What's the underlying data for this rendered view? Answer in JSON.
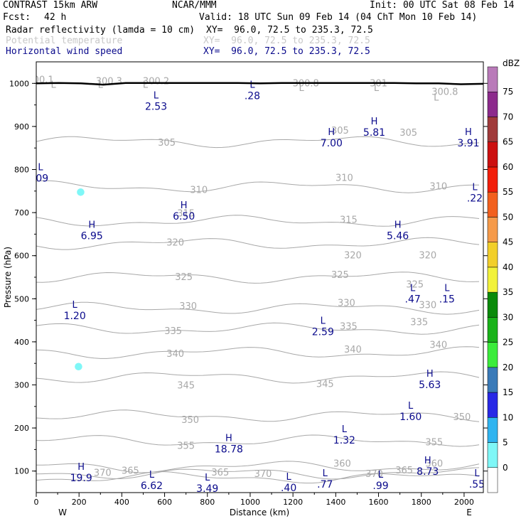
{
  "header": {
    "model": "CONTRAST 15km ARW",
    "org": "NCAR/MMM",
    "init": "Init: 00 UTC Sat 08 Feb 14",
    "fcst_label": "Fcst:",
    "fcst_value": "42 h",
    "valid": "Valid: 18 UTC Sun 09 Feb 14 (04 ChT Mon 10 Feb 14)",
    "field1_name": "Radar reflectivity (lamda = 10 cm)",
    "field1_xy": "XY=  96.0, 72.5 to 235.3, 72.5",
    "field2_name": "Potential temperature",
    "field2_xy": "XY=  96.0, 72.5 to 235.3, 72.5",
    "field3_name": "Horizontal wind speed",
    "field3_xy": "XY=  96.0, 72.5 to 235.3, 72.5"
  },
  "colors": {
    "theta_contour": "#a8a8a8",
    "wind_label": "#0a0a8c",
    "reflectivity_5_10": "#7ff7f7",
    "terrain": "#000000"
  },
  "chart_data": {
    "type": "cross-section",
    "xlabel": "Distance (km)",
    "ylabel": "Pressure (hPa)",
    "xlim": [
      0,
      2090
    ],
    "ylim": [
      1050,
      50
    ],
    "x_ticks": [
      "0",
      "200",
      "400",
      "600",
      "800",
      "1000",
      "1200",
      "1400",
      "1600",
      "1800",
      "2000"
    ],
    "y_ticks": [
      "100",
      "200",
      "300",
      "400",
      "500",
      "600",
      "700",
      "800",
      "900",
      "1000"
    ],
    "x_end_labels": {
      "left": "W",
      "right": "E"
    },
    "colorbar": {
      "unit": "dBZ",
      "labels": [
        "0",
        "5",
        "10",
        "15",
        "20",
        "25",
        "30",
        "35",
        "40",
        "45",
        "50",
        "55",
        "60",
        "65",
        "70",
        "75"
      ],
      "colors": [
        "#ffffff",
        "#7ff7f7",
        "#30b4f0",
        "#2828e6",
        "#3a7ab8",
        "#3bec3b",
        "#19b219",
        "#0a8a0a",
        "#f2f23a",
        "#f2cf2a",
        "#f59a4a",
        "#f2601e",
        "#f21e0a",
        "#cc1010",
        "#a03a3a",
        "#8c2a8c",
        "#b97ab9"
      ]
    },
    "theta_contours": [
      {
        "value": "305",
        "p": 865
      },
      {
        "value": "310",
        "p": 760
      },
      {
        "value": "315",
        "p": 680
      },
      {
        "value": "320",
        "p": 628
      },
      {
        "value": "325",
        "p": 550
      },
      {
        "value": "330",
        "p": 478
      },
      {
        "value": "335",
        "p": 430
      },
      {
        "value": "340",
        "p": 375
      },
      {
        "value": "345",
        "p": 318
      },
      {
        "value": "350",
        "p": 228
      },
      {
        "value": "355",
        "p": 170
      },
      {
        "value": "360",
        "p": 110
      },
      {
        "value": "365",
        "p": 95
      },
      {
        "value": "370",
        "p": 85
      }
    ],
    "theta_labels": [
      {
        "text": "370",
        "x": 310,
        "p": 95
      },
      {
        "text": "365",
        "x": 440,
        "p": 100
      },
      {
        "text": "365",
        "x": 860,
        "p": 96
      },
      {
        "text": "370",
        "x": 1060,
        "p": 93
      },
      {
        "text": "370",
        "x": 1580,
        "p": 93
      },
      {
        "text": "365",
        "x": 1720,
        "p": 101
      },
      {
        "text": "360",
        "x": 1430,
        "p": 117
      },
      {
        "text": "360",
        "x": 1860,
        "p": 117
      },
      {
        "text": "355",
        "x": 700,
        "p": 158
      },
      {
        "text": "355",
        "x": 1860,
        "p": 166
      },
      {
        "text": "350",
        "x": 720,
        "p": 218
      },
      {
        "text": "350",
        "x": 1990,
        "p": 225
      },
      {
        "text": "345",
        "x": 700,
        "p": 298
      },
      {
        "text": "345",
        "x": 1350,
        "p": 302
      },
      {
        "text": "340",
        "x": 650,
        "p": 372
      },
      {
        "text": "340",
        "x": 1480,
        "p": 382
      },
      {
        "text": "340",
        "x": 1880,
        "p": 392
      },
      {
        "text": "335",
        "x": 640,
        "p": 425
      },
      {
        "text": "335",
        "x": 1460,
        "p": 435
      },
      {
        "text": "335",
        "x": 1790,
        "p": 445
      },
      {
        "text": "330",
        "x": 710,
        "p": 482
      },
      {
        "text": "330",
        "x": 1450,
        "p": 490
      },
      {
        "text": "330",
        "x": 1830,
        "p": 485
      },
      {
        "text": "325",
        "x": 690,
        "p": 550
      },
      {
        "text": "325",
        "x": 1420,
        "p": 555
      },
      {
        "text": "325",
        "x": 1770,
        "p": 533
      },
      {
        "text": "320",
        "x": 650,
        "p": 630
      },
      {
        "text": "320",
        "x": 1480,
        "p": 600
      },
      {
        "text": "320",
        "x": 1830,
        "p": 600
      },
      {
        "text": "315",
        "x": 700,
        "p": 698
      },
      {
        "text": "315",
        "x": 1460,
        "p": 683
      },
      {
        "text": "310",
        "x": 760,
        "p": 752
      },
      {
        "text": "310",
        "x": 1440,
        "p": 780
      },
      {
        "text": "310",
        "x": 1880,
        "p": 760
      },
      {
        "text": "305",
        "x": 610,
        "p": 862
      },
      {
        "text": "305",
        "x": 1420,
        "p": 890
      },
      {
        "text": "305",
        "x": 1740,
        "p": 885
      },
      {
        "text": "300.8",
        "x": 1910,
        "p": 980
      },
      {
        "text": "300.8",
        "x": 1260,
        "p": 1000
      },
      {
        "text": "301",
        "x": 1600,
        "p": 1000
      },
      {
        "text": "300.3",
        "x": 340,
        "p": 1005
      },
      {
        "text": "300.2",
        "x": 560,
        "p": 1005
      },
      {
        "text": "300.1",
        "x": 20,
        "p": 1008
      }
    ],
    "theta_minima": [
      {
        "x": 80,
        "p": 990
      },
      {
        "x": 300,
        "p": 990
      },
      {
        "x": 510,
        "p": 990
      },
      {
        "x": 1240,
        "p": 982
      },
      {
        "x": 1590,
        "p": 982
      },
      {
        "x": 1870,
        "p": 960
      }
    ],
    "wind_extrema": [
      {
        "type": "H",
        "value": "19.9",
        "x": 210,
        "p": 103
      },
      {
        "type": "L",
        "value": "6.62",
        "x": 540,
        "p": 85
      },
      {
        "type": "L",
        "value": "3.49",
        "x": 800,
        "p": 78
      },
      {
        "type": "L",
        "value": ".40",
        "x": 1180,
        "p": 80
      },
      {
        "type": "L",
        "value": ".77",
        "x": 1350,
        "p": 88
      },
      {
        "type": "L",
        "value": ".99",
        "x": 1610,
        "p": 85
      },
      {
        "type": "H",
        "value": "8.73",
        "x": 1830,
        "p": 118
      },
      {
        "type": "L",
        "value": ".55",
        "x": 2060,
        "p": 88
      },
      {
        "type": "H",
        "value": "18.78",
        "x": 900,
        "p": 170
      },
      {
        "type": "L",
        "value": "1.32",
        "x": 1440,
        "p": 190
      },
      {
        "type": "L",
        "value": "1.60",
        "x": 1750,
        "p": 245
      },
      {
        "type": "H",
        "value": "5.63",
        "x": 1840,
        "p": 319
      },
      {
        "type": "L",
        "value": "2.59",
        "x": 1340,
        "p": 442
      },
      {
        "type": "L",
        "value": "1.20",
        "x": 180,
        "p": 479
      },
      {
        "type": "L",
        "value": ".47",
        "x": 1760,
        "p": 518
      },
      {
        "type": "L",
        "value": ".15",
        "x": 1920,
        "p": 518
      },
      {
        "type": "H",
        "value": "6.95",
        "x": 260,
        "p": 665
      },
      {
        "type": "H",
        "value": "5.46",
        "x": 1690,
        "p": 665
      },
      {
        "type": "H",
        "value": "6.50",
        "x": 690,
        "p": 710
      },
      {
        "type": "L",
        "value": ".22",
        "x": 2050,
        "p": 752
      },
      {
        "type": "L",
        "value": ".09",
        "x": 20,
        "p": 798
      },
      {
        "type": "H",
        "value": "7.00",
        "x": 1380,
        "p": 880
      },
      {
        "type": "H",
        "value": "3.91",
        "x": 2020,
        "p": 880
      },
      {
        "type": "H",
        "value": "5.81",
        "x": 1580,
        "p": 905
      },
      {
        "type": "L",
        "value": "2.53",
        "x": 560,
        "p": 965
      },
      {
        "type": "L",
        "value": ".28",
        "x": 1010,
        "p": 990
      }
    ],
    "reflectivity_cells": [
      {
        "dbz_bin": "5-10",
        "x": [
          180,
          215
        ],
        "p": [
          300,
          385
        ]
      },
      {
        "dbz_bin": "5-10",
        "x": [
          190,
          225
        ],
        "p": [
          655,
          840
        ]
      }
    ],
    "terrain_surface_hPa": [
      1000,
      1001,
      1000,
      997,
      1001,
      1001,
      1001,
      1001,
      1001,
      1001,
      1000,
      1001,
      1001,
      1001,
      1001,
      1001,
      1001,
      1000,
      1000,
      998,
      999
    ]
  }
}
